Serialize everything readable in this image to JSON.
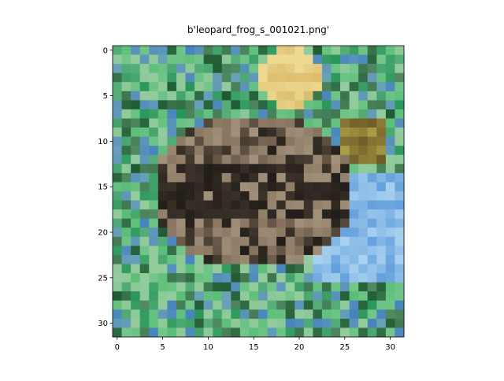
{
  "chart_data": {
    "type": "image",
    "title": "b'leopard_frog_s_001021.png'",
    "xlim": [
      -0.5,
      31.5
    ],
    "ylim": [
      31.5,
      -0.5
    ],
    "xticks": [
      0,
      5,
      10,
      15,
      20,
      25,
      30
    ],
    "yticks": [
      0,
      5,
      10,
      15,
      20,
      25,
      30
    ]
  }
}
